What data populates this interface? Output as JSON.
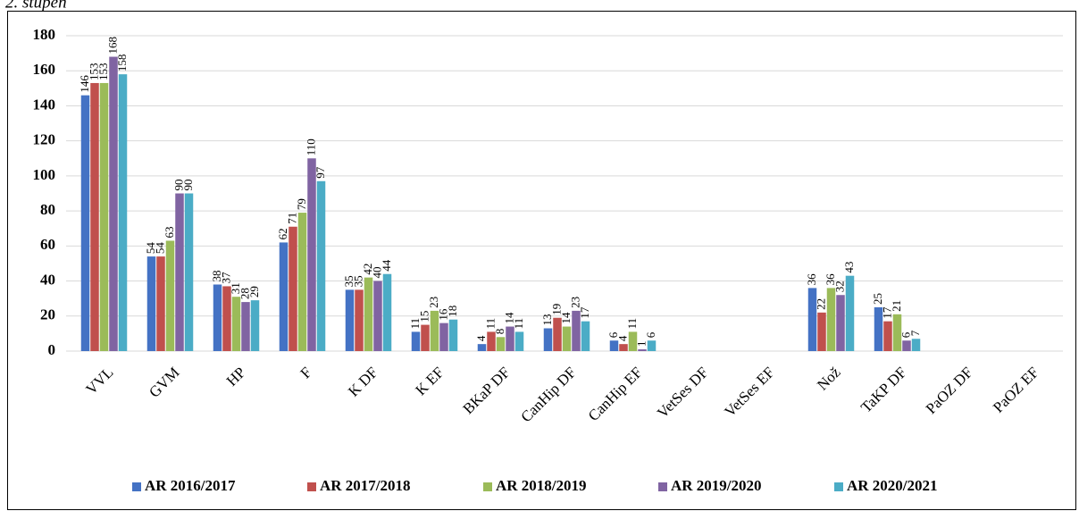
{
  "title": "2. stupeň",
  "chart_data": {
    "type": "bar",
    "categories": [
      "VVL",
      "GVM",
      "HP",
      "F",
      "K DF",
      "K EF",
      "BKaP DF",
      "CanHip DF",
      "CanHip EF",
      "VetSes DF",
      "VetSes EF",
      "Nož",
      "TaKP DF",
      "PaOZ DF",
      "PaOZ EF"
    ],
    "series": [
      {
        "name": "AR 2016/2017",
        "color": "#4472c4",
        "values": [
          146,
          54,
          38,
          62,
          35,
          11,
          4,
          13,
          6,
          null,
          null,
          36,
          25,
          null,
          null
        ]
      },
      {
        "name": "AR 2017/2018",
        "color": "#c0504d",
        "values": [
          153,
          54,
          37,
          71,
          35,
          15,
          11,
          19,
          4,
          null,
          null,
          22,
          17,
          null,
          null
        ]
      },
      {
        "name": "AR 2018/2019",
        "color": "#9bbb59",
        "values": [
          153,
          63,
          31,
          79,
          42,
          23,
          8,
          14,
          11,
          null,
          null,
          36,
          21,
          null,
          null
        ]
      },
      {
        "name": "AR 2019/2020",
        "color": "#8064a2",
        "values": [
          168,
          90,
          28,
          110,
          40,
          16,
          14,
          23,
          1,
          null,
          null,
          32,
          6,
          null,
          null
        ]
      },
      {
        "name": "AR 2020/2021",
        "color": "#4bacc6",
        "values": [
          158,
          90,
          29,
          97,
          44,
          18,
          11,
          17,
          6,
          null,
          null,
          43,
          7,
          null,
          null
        ]
      }
    ],
    "ylim": [
      0,
      180
    ],
    "yticks": [
      0,
      20,
      40,
      60,
      80,
      100,
      120,
      140,
      160,
      180
    ],
    "grid": true,
    "legend": "bottom"
  }
}
